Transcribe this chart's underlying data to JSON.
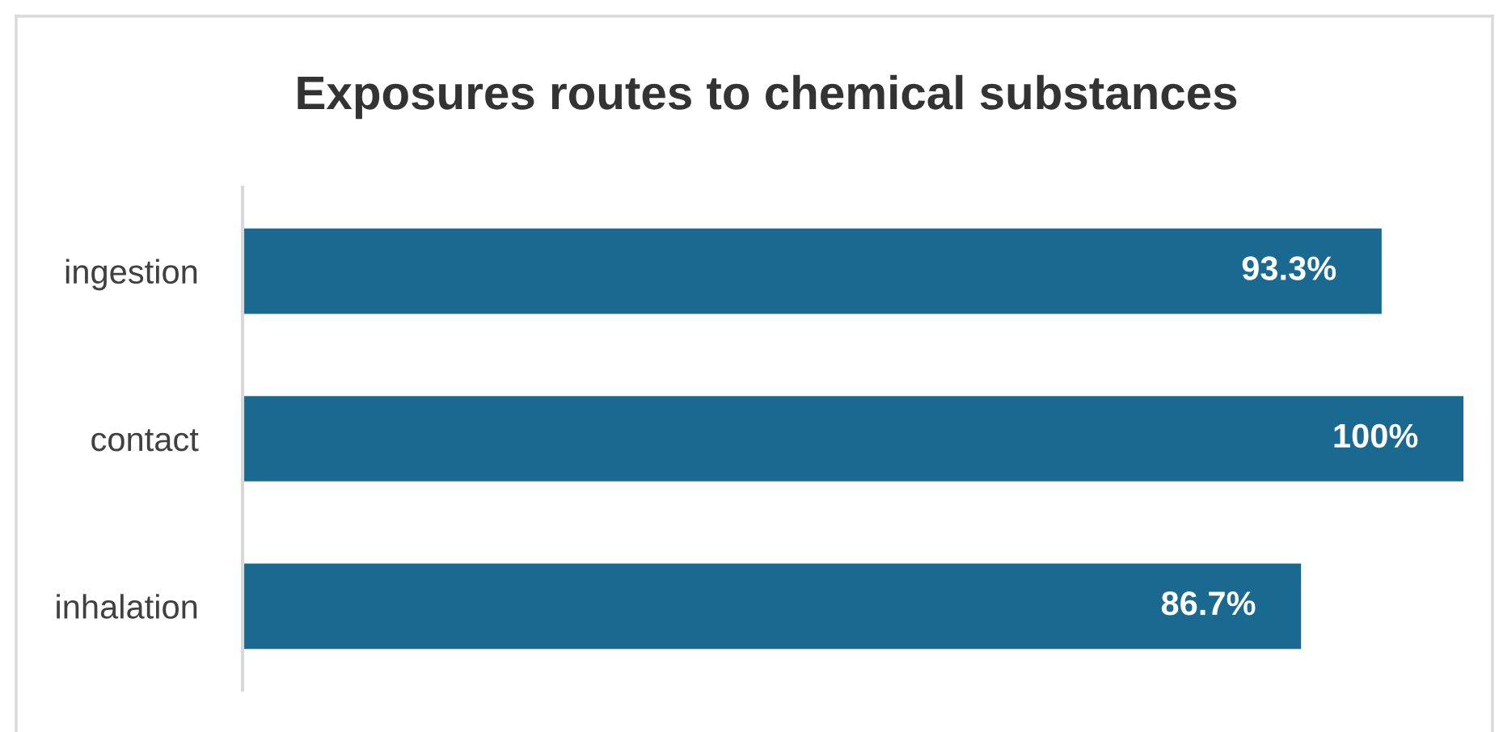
{
  "chart_data": {
    "type": "bar",
    "orientation": "horizontal",
    "title": "Exposures routes to chemical substances",
    "categories": [
      "ingestion",
      "contact",
      "inhalation"
    ],
    "values": [
      93.3,
      100,
      86.7
    ],
    "value_labels": [
      "93.3%",
      "100%",
      "86.7%"
    ],
    "color": "#1a6990",
    "xlim": [
      0,
      100
    ],
    "tick_labels": "y",
    "grid": false,
    "legend": false
  }
}
